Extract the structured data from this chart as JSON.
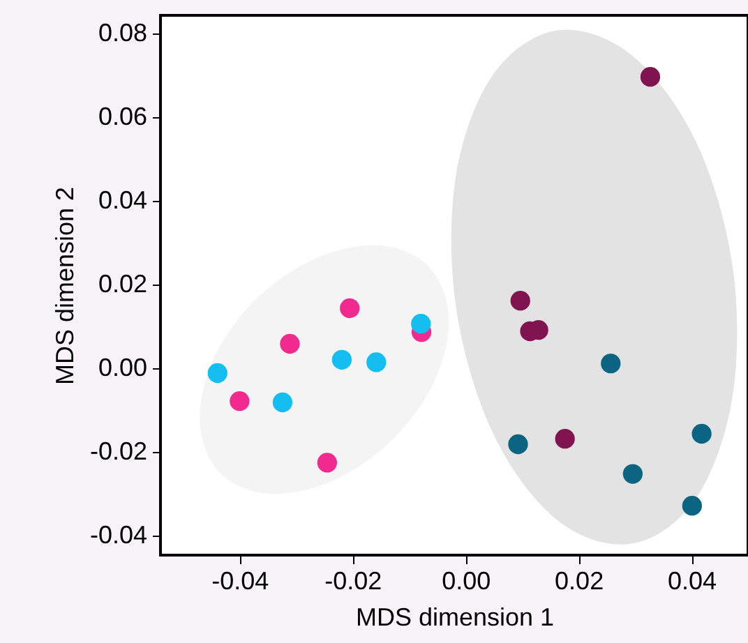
{
  "chart_data": {
    "type": "scatter",
    "xlabel": "MDS dimension 1",
    "ylabel": "MDS dimension 2",
    "xlim": [
      -0.054,
      0.05
    ],
    "ylim": [
      -0.0447,
      0.0843
    ],
    "xticks": [
      -0.04,
      -0.02,
      {
        "value": 0,
        "label": "0.00"
      },
      0.02,
      0.04
    ],
    "yticks": [
      -0.04,
      -0.02,
      {
        "value": 0,
        "label": "0.00"
      },
      0.02,
      0.04,
      0.06,
      0.08
    ],
    "grid": false,
    "marker": "circle",
    "series": [
      {
        "type": "area",
        "marker": "none",
        "color": "#f4f4f4",
        "x": [
          -0.0066,
          -0.003,
          -0.0052,
          -0.0127,
          -0.0236,
          -0.0348,
          -0.0434,
          -0.047,
          -0.0448,
          -0.0373,
          -0.0264,
          -0.0152
        ],
        "values": [
          0.0244,
          0.0128,
          -0.0022,
          -0.0168,
          -0.027,
          -0.03,
          -0.0251,
          -0.0135,
          0.0016,
          0.0162,
          0.0263,
          0.0293
        ]
      },
      {
        "type": "area",
        "marker": "none",
        "color": "#e3e3e3",
        "x": [
          0.0292,
          0.0406,
          0.0472,
          0.0473,
          0.0408,
          0.0294,
          0.0163,
          0.0049,
          -0.0017,
          -0.0017,
          0.0048,
          0.0161
        ],
        "values": [
          -0.042,
          -0.0315,
          -0.0073,
          0.024,
          0.0541,
          0.0748,
          0.0807,
          0.0702,
          0.046,
          0.0147,
          -0.0154,
          -0.0362
        ]
      },
      {
        "color": "#f02a8f",
        "x": [
          -0.0205,
          -0.0311,
          -0.04,
          -0.0245,
          -0.0078
        ],
        "values": [
          0.0143,
          0.0058,
          -0.0079,
          -0.0226,
          0.0086
        ]
      },
      {
        "color": "#14bef0",
        "x": [
          -0.0439,
          -0.0324,
          -0.0219,
          -0.0158,
          -0.0079
        ],
        "values": [
          -0.0012,
          -0.0082,
          0.002,
          0.0014,
          0.0106
        ]
      },
      {
        "color": "#7f1450",
        "x": [
          0.0097,
          0.0114,
          0.0129,
          0.0176,
          0.0327
        ],
        "values": [
          0.0161,
          0.0088,
          0.0091,
          -0.0169,
          0.0696
        ]
      },
      {
        "color": "#0b6482",
        "x": [
          0.0257,
          0.0093,
          0.0296,
          0.0418,
          0.0401
        ],
        "values": [
          0.0011,
          -0.0182,
          -0.0253,
          -0.0157,
          -0.0329
        ]
      }
    ]
  }
}
